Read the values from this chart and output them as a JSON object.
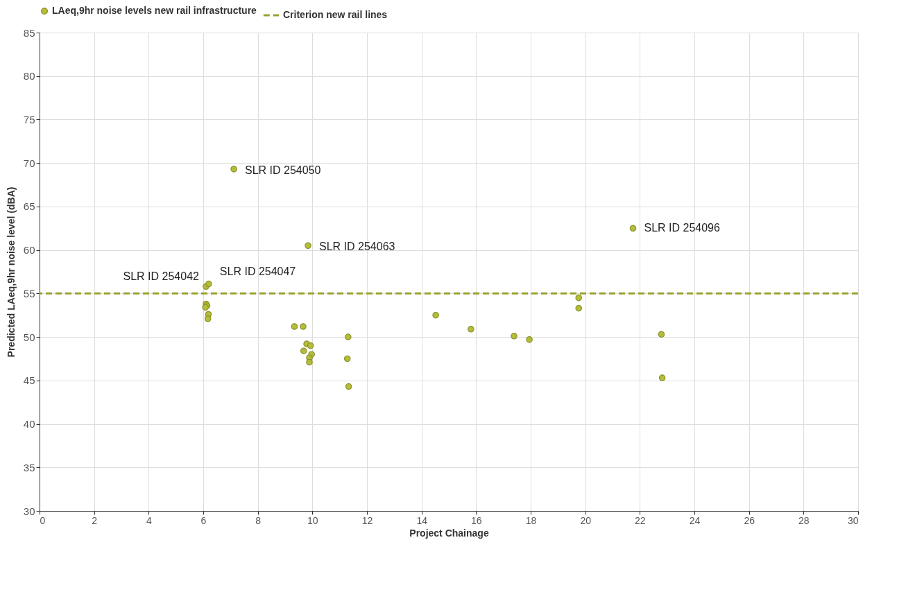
{
  "chart_data": {
    "type": "scatter",
    "xlabel": "Project Chainage",
    "ylabel": "Predicted LAeq,9hr noise level (dBA)",
    "xlim": [
      0,
      30
    ],
    "xticks": [
      0,
      2,
      4,
      6,
      8,
      10,
      12,
      14,
      16,
      18,
      20,
      22,
      24,
      26,
      28,
      30
    ],
    "ylim": [
      30,
      85
    ],
    "yticks": [
      30,
      35,
      40,
      45,
      50,
      55,
      60,
      65,
      70,
      75,
      80,
      85
    ],
    "grid": true,
    "legend": "top",
    "marker": "circle",
    "series": [
      {
        "name": "LAeq,9hr noise levels new rail infrastructure",
        "color": "#b5bd3a",
        "x": [
          7.12,
          9.84,
          21.75,
          6.1,
          6.2,
          6.1,
          6.14,
          6.08,
          6.19,
          6.17,
          9.34,
          9.66,
          11.31,
          9.79,
          9.93,
          9.68,
          9.97,
          9.89,
          11.28,
          9.89,
          11.33,
          14.52,
          15.81,
          17.39,
          17.95,
          19.76,
          19.76,
          22.79,
          22.82
        ],
        "values": [
          69.3,
          60.5,
          62.5,
          55.8,
          56.1,
          53.8,
          53.6,
          53.4,
          52.6,
          52.1,
          51.2,
          51.2,
          50.0,
          49.2,
          49.0,
          48.4,
          48.0,
          47.6,
          47.5,
          47.1,
          44.3,
          52.5,
          50.9,
          50.1,
          49.7,
          54.5,
          53.3,
          50.3,
          45.3
        ]
      }
    ],
    "ref_lines": [
      {
        "axis": "y",
        "value": 55,
        "label": "Criterion new rail lines",
        "color": "#9aa22e",
        "line_style": "dashed"
      }
    ],
    "annotations": [
      {
        "text": "SLR ID 254050",
        "x": 7.12,
        "y": 69.3
      },
      {
        "text": "SLR ID 254063",
        "x": 9.84,
        "y": 60.5
      },
      {
        "text": "SLR ID 254096",
        "x": 21.75,
        "y": 62.5
      },
      {
        "text": "SLR ID 254042",
        "x": 6.1,
        "y": 55.8
      },
      {
        "text": "SLR ID 254047",
        "x": 6.2,
        "y": 56.1
      }
    ]
  }
}
